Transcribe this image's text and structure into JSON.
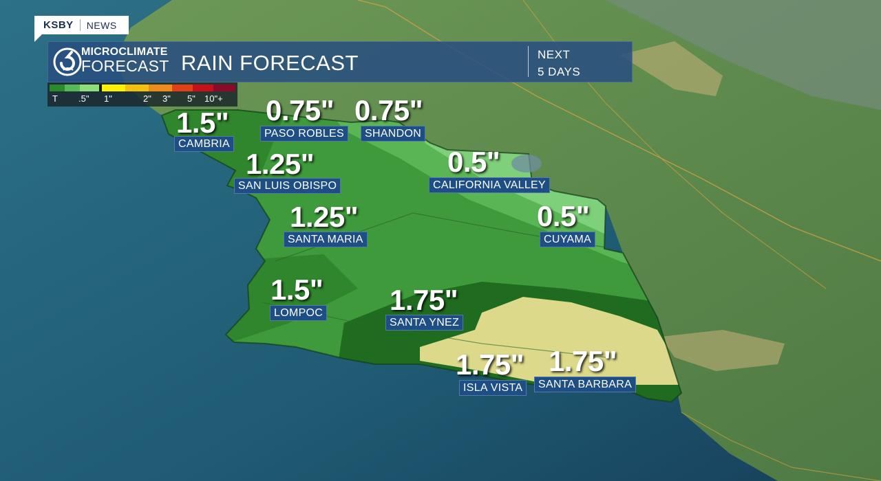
{
  "network": {
    "station": "KSBY",
    "section": "NEWS"
  },
  "header": {
    "logo_line1": "MICROCLIMATE",
    "logo_line2": "FORECAST",
    "title": "RAIN FORECAST",
    "period_line1": "NEXT",
    "period_line2": "5 DAYS"
  },
  "legend": {
    "ticks": [
      "T",
      ".5\"",
      "1\"",
      "2\"",
      "3\"",
      "5\"",
      "10\"+"
    ],
    "colors": [
      "#2c8a2c",
      "#57b957",
      "#8fdc7a",
      "#1a1a1a",
      "#fff200",
      "#f4c20d",
      "#f08c1c",
      "#e3401a",
      "#c8101d",
      "#8b0a2a"
    ]
  },
  "colors": {
    "ocean": "#1f5b73",
    "land": "#5f8a4e",
    "rain_light": "#7fd07a",
    "rain_mid": "#3e9a3a",
    "rain_heavy": "#1f6b20",
    "rain_max": "#dcd98a",
    "label_bg": "#1d4f86",
    "header_bg": "#284e80"
  },
  "locations": [
    {
      "name": "CAMBRIA",
      "amount": "1.5\""
    },
    {
      "name": "PASO ROBLES",
      "amount": "0.75\""
    },
    {
      "name": "SHANDON",
      "amount": "0.75\""
    },
    {
      "name": "SAN LUIS OBISPO",
      "amount": "1.25\""
    },
    {
      "name": "CALIFORNIA VALLEY",
      "amount": "0.5\""
    },
    {
      "name": "SANTA MARIA",
      "amount": "1.25\""
    },
    {
      "name": "CUYAMA",
      "amount": "0.5\""
    },
    {
      "name": "LOMPOC",
      "amount": "1.5\""
    },
    {
      "name": "SANTA YNEZ",
      "amount": "1.75\""
    },
    {
      "name": "ISLA VISTA",
      "amount": "1.75\""
    },
    {
      "name": "SANTA BARBARA",
      "amount": "1.75\""
    }
  ]
}
